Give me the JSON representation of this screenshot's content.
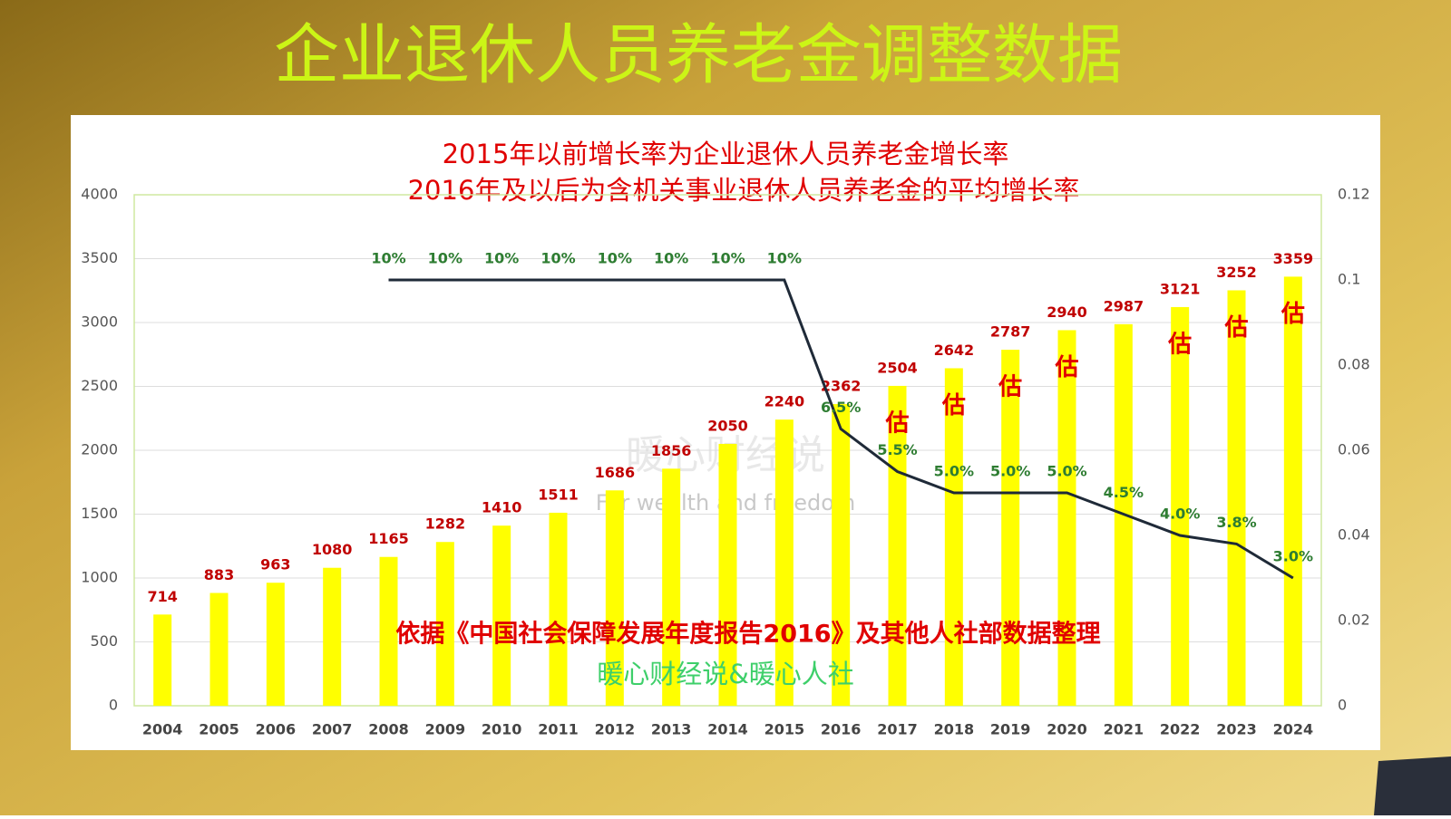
{
  "chart_data": {
    "type": "bar",
    "title": "企业退休人员养老金调整数据",
    "subtitle": [
      "2015年以前增长率为企业退休人员养老金增长率",
      "2016年及以后为含机关事业退休人员养老金的平均增长率"
    ],
    "categories": [
      "2004",
      "2005",
      "2006",
      "2007",
      "2008",
      "2009",
      "2010",
      "2011",
      "2012",
      "2013",
      "2014",
      "2015",
      "2016",
      "2017",
      "2018",
      "2019",
      "2020",
      "2021",
      "2022",
      "2023",
      "2024"
    ],
    "series": [
      {
        "type": "bar",
        "color": "#ffff00",
        "label_color": "#c00000",
        "values": [
          714,
          883,
          963,
          1080,
          1165,
          1282,
          1410,
          1511,
          1686,
          1856,
          2050,
          2240,
          2362,
          2504,
          2642,
          2787,
          2940,
          2987,
          3121,
          3252,
          3359
        ],
        "bar_notes": [
          null,
          null,
          null,
          null,
          null,
          null,
          null,
          null,
          null,
          null,
          null,
          null,
          null,
          "估",
          "估",
          "估",
          "估",
          null,
          "估",
          "估",
          "估"
        ]
      },
      {
        "type": "line",
        "axis": "y2",
        "color": "#1f2a38",
        "label_color": "#2e7d32",
        "values": [
          null,
          null,
          null,
          null,
          0.1,
          0.1,
          0.1,
          0.1,
          0.1,
          0.1,
          0.1,
          0.1,
          0.065,
          0.055,
          0.05,
          0.05,
          0.05,
          0.045,
          0.04,
          0.038,
          0.03
        ],
        "value_labels": [
          null,
          null,
          null,
          null,
          "10%",
          "10%",
          "10%",
          "10%",
          "10%",
          "10%",
          "10%",
          "10%",
          "6.5%",
          "5.5%",
          "5.0%",
          "5.0%",
          "5.0%",
          "4.5%",
          "4.0%",
          "3.8%",
          "3.0%"
        ]
      }
    ],
    "ylim": [
      0,
      4000
    ],
    "yticks": [
      0,
      500,
      1000,
      1500,
      2000,
      2500,
      3000,
      3500,
      4000
    ],
    "y2lim": [
      0,
      0.12
    ],
    "y2ticks": [
      0,
      0.02,
      0.04,
      0.06,
      0.08,
      0.1,
      0.12
    ],
    "grid": true,
    "annotations": [
      "依据《中国社会保障发展年度报告2016》及其他人社部数据整理",
      "暖心财经说&暖心人社"
    ],
    "watermark": [
      "暖心财经说",
      "For wealth and freedom"
    ]
  }
}
